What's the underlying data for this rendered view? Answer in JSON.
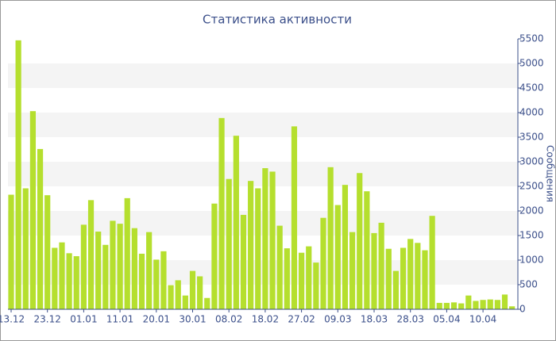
{
  "chart_data": {
    "type": "bar",
    "title": "Статистика активности",
    "y_label": "Сообщения",
    "categories": [
      "13.12",
      null,
      null,
      null,
      null,
      "23.12",
      null,
      null,
      null,
      null,
      "01.01",
      null,
      null,
      null,
      null,
      "11.01",
      null,
      null,
      null,
      null,
      "20.01",
      null,
      null,
      null,
      null,
      "30.01",
      null,
      null,
      null,
      null,
      "08.02",
      null,
      null,
      null,
      null,
      "18.02",
      null,
      null,
      null,
      null,
      "27.02",
      null,
      null,
      null,
      null,
      "09.03",
      null,
      null,
      null,
      null,
      "18.03",
      null,
      null,
      null,
      null,
      "28.03",
      null,
      null,
      null,
      null,
      "05.04",
      null,
      null,
      null,
      null,
      "10.04",
      null,
      null,
      null,
      null
    ],
    "values": [
      2330,
      5470,
      2460,
      4030,
      3260,
      2320,
      1250,
      1360,
      1140,
      1080,
      1720,
      2220,
      1580,
      1310,
      1800,
      1740,
      2260,
      1650,
      1130,
      1570,
      1010,
      1180,
      490,
      590,
      280,
      780,
      670,
      230,
      2150,
      3890,
      2650,
      3530,
      1920,
      2610,
      2460,
      2870,
      2800,
      1700,
      1240,
      3720,
      1150,
      1280,
      950,
      1860,
      2890,
      2120,
      2530,
      1570,
      2770,
      2400,
      1550,
      1760,
      1230,
      780,
      1250,
      1430,
      1350,
      1200,
      1900,
      130,
      130,
      140,
      120,
      280,
      170,
      190,
      200,
      190,
      300,
      60
    ],
    "color": "#b5df2e",
    "ylim": [
      0,
      5500
    ],
    "yticks": [
      0,
      500,
      1000,
      1500,
      2000,
      2500,
      3000,
      3500,
      4000,
      4500,
      5000,
      5500
    ],
    "grid_bands": true,
    "band_color": "#f4f4f4",
    "axis_side": "right"
  }
}
